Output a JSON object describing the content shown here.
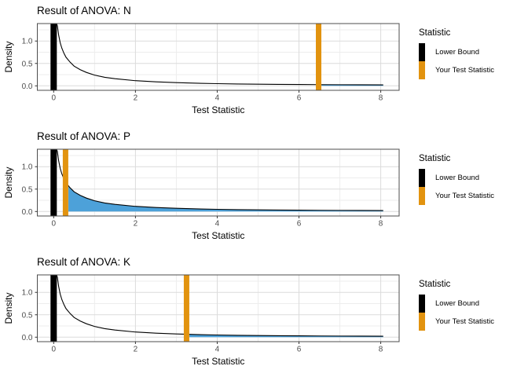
{
  "legend": {
    "title": "Statistic",
    "items": [
      {
        "label": "Lower Bound",
        "color": "#000000"
      },
      {
        "label": "Your Test Statistic",
        "color": "#E2930F"
      }
    ]
  },
  "chart_data": {
    "type": "area",
    "shared": {
      "xlabel": "Test Statistic",
      "ylabel": "Density",
      "xlim": [
        -0.4,
        8.45
      ],
      "ylim": [
        -0.1,
        1.39
      ],
      "x_tick_values": [
        0,
        2,
        4,
        6,
        8
      ],
      "x_tick_labels": [
        "0",
        "2",
        "4",
        "6",
        "8"
      ],
      "y_tick_values": [
        0.0,
        0.5,
        1.0
      ],
      "y_tick_labels": [
        "0.0",
        "0.5",
        "1.0"
      ],
      "x_minor": [
        1,
        3,
        5,
        7
      ],
      "y_minor": [
        0.25,
        0.75,
        1.25
      ],
      "grid": true,
      "legend_position": "right",
      "curve_points": [
        [
          0.07,
          1.39
        ],
        [
          0.09,
          1.34
        ],
        [
          0.12,
          1.14
        ],
        [
          0.16,
          0.96
        ],
        [
          0.2,
          0.84
        ],
        [
          0.25,
          0.73
        ],
        [
          0.3,
          0.64
        ],
        [
          0.4,
          0.53
        ],
        [
          0.5,
          0.44
        ],
        [
          0.65,
          0.36
        ],
        [
          0.8,
          0.3
        ],
        [
          1.0,
          0.24
        ],
        [
          1.25,
          0.19
        ],
        [
          1.5,
          0.16
        ],
        [
          2.0,
          0.115
        ],
        [
          2.5,
          0.09
        ],
        [
          3.0,
          0.072
        ],
        [
          3.5,
          0.058
        ],
        [
          4.0,
          0.049
        ],
        [
          4.5,
          0.042
        ],
        [
          5.0,
          0.037
        ],
        [
          5.5,
          0.033
        ],
        [
          6.0,
          0.03
        ],
        [
          6.5,
          0.027
        ],
        [
          7.0,
          0.025
        ],
        [
          7.5,
          0.023
        ],
        [
          8.06,
          0.021
        ]
      ],
      "colors": {
        "lower_bound_bar": "#000000",
        "test_statistic_bar": "#E2930F",
        "shade_fill": "#4DA1D9",
        "curve": "#000000",
        "grid_major": "#DBDBDB",
        "grid_minor": "#EDEDED",
        "panel_border": "#4D4D4D",
        "tick_text": "#4D4D4D",
        "axis_title_text": "#000000"
      }
    },
    "panels": [
      {
        "title": "Result of ANOVA: N",
        "lower_bound_x": 0,
        "test_statistic_x": 6.48,
        "shade_from": 6.55
      },
      {
        "title": "Result of ANOVA: P",
        "lower_bound_x": 0,
        "test_statistic_x": 0.29,
        "shade_from": 0.36
      },
      {
        "title": "Result of ANOVA: K",
        "lower_bound_x": 0,
        "test_statistic_x": 3.25,
        "shade_from": 3.32
      }
    ]
  }
}
